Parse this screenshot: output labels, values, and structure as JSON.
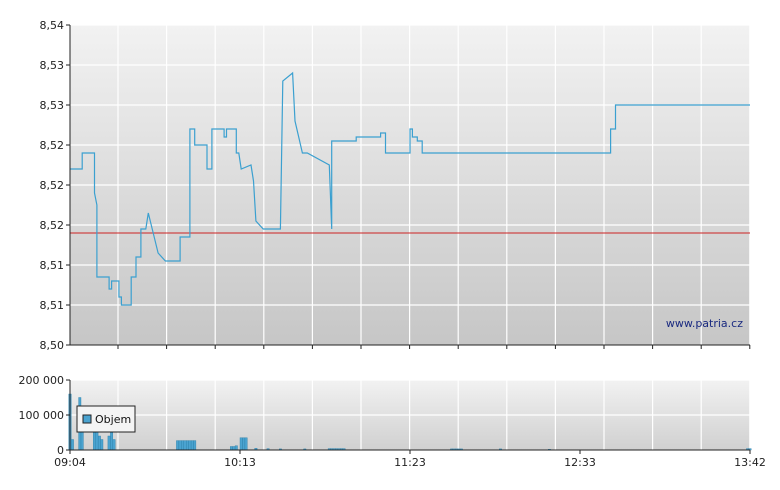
{
  "watermark": "www.patria.cz",
  "colors": {
    "price_line": "#3ba0d0",
    "reference_line": "#cc2222",
    "volume_bar": "#4aa3d0",
    "grid": "#ffffff",
    "plot_top": "#f2f2f2",
    "plot_bottom": "#c6c6c6"
  },
  "chart_data": [
    {
      "type": "line",
      "name": "price",
      "x_axis": {
        "range_minutes": [
          544,
          822
        ],
        "tick_labels": [
          "09:04",
          "10:13",
          "11:23",
          "12:33",
          "13:42"
        ]
      },
      "y_axis": {
        "range": [
          8.5,
          8.54
        ],
        "tick_values": [
          8.5,
          8.505,
          8.51,
          8.515,
          8.52,
          8.525,
          8.53,
          8.535,
          8.54
        ],
        "tick_labels": [
          "8,50",
          "8,51",
          "8,51",
          "8,52",
          "8,52",
          "8,52",
          "8,53",
          "8,53",
          "8,54"
        ]
      },
      "reference_value": 8.514,
      "grid": true,
      "series": [
        {
          "x": [
            544,
            549,
            549,
            554,
            554,
            555,
            555,
            560,
            560,
            561,
            561,
            564,
            564,
            565,
            565,
            569,
            569,
            571,
            571,
            573,
            573,
            575,
            576,
            576,
            580,
            580,
            583,
            583,
            583,
            588,
            589,
            589,
            593,
            593,
            595,
            595,
            600,
            600,
            602,
            602,
            607,
            607,
            608,
            608,
            612,
            612,
            613,
            614,
            614,
            618,
            618,
            619,
            619,
            620,
            620,
            623,
            623,
            630,
            630,
            631,
            631,
            635,
            635,
            636,
            636,
            639,
            639,
            641,
            641,
            650,
            651,
            651,
            661,
            661,
            671,
            671,
            673,
            673,
            683,
            683,
            684,
            684,
            686,
            686,
            688,
            688,
            713,
            713,
            721,
            721,
            765,
            765,
            767,
            767,
            800,
            800,
            822
          ],
          "y": [
            8.522,
            8.522,
            8.524,
            8.524,
            8.519,
            8.5175,
            8.5085,
            8.5085,
            8.507,
            8.507,
            8.508,
            8.508,
            8.506,
            8.506,
            8.505,
            8.505,
            8.5085,
            8.5085,
            8.511,
            8.511,
            8.5145,
            8.5145,
            8.5165,
            8.5165,
            8.5115,
            8.5115,
            8.5105,
            8.5105,
            8.5105,
            8.5105,
            8.5105,
            8.5135,
            8.5135,
            8.527,
            8.527,
            8.525,
            8.525,
            8.522,
            8.522,
            8.527,
            8.527,
            8.526,
            8.526,
            8.527,
            8.527,
            8.524,
            8.524,
            8.522,
            8.522,
            8.5225,
            8.5225,
            8.5205,
            8.5205,
            8.5155,
            8.5155,
            8.5145,
            8.5145,
            8.5145,
            8.5145,
            8.533,
            8.533,
            8.534,
            8.534,
            8.528,
            8.528,
            8.524,
            8.524,
            8.524,
            8.524,
            8.5225,
            8.5145,
            8.5255,
            8.5255,
            8.526,
            8.526,
            8.5265,
            8.5265,
            8.524,
            8.524,
            8.527,
            8.527,
            8.526,
            8.526,
            8.5255,
            8.5255,
            8.524,
            8.524,
            8.524,
            8.524,
            8.524,
            8.524,
            8.527,
            8.527,
            8.53,
            8.53,
            8.53,
            8.53
          ]
        }
      ]
    },
    {
      "type": "bar",
      "name": "volume",
      "y_axis": {
        "range": [
          0,
          200000
        ],
        "tick_values": [
          0,
          100000,
          200000
        ],
        "tick_labels": [
          "0",
          "100 000",
          "200 000"
        ]
      },
      "legend": {
        "label": "Objem",
        "placement": "top-left"
      },
      "grid": true,
      "bars": {
        "x": [
          544,
          545,
          548,
          549,
          554,
          555,
          556,
          557,
          560,
          561,
          562,
          588,
          589,
          590,
          591,
          592,
          593,
          594,
          595,
          610,
          611,
          612,
          614,
          615,
          616,
          620,
          625,
          630,
          640,
          650,
          651,
          652,
          653,
          654,
          655,
          656,
          700,
          701,
          702,
          703,
          704,
          720,
          740,
          821,
          822
        ],
        "values": [
          160000,
          30000,
          150000,
          60000,
          50000,
          60000,
          40000,
          30000,
          40000,
          50000,
          30000,
          27000,
          27000,
          27000,
          27000,
          27000,
          27000,
          27000,
          27000,
          10000,
          10000,
          12000,
          35000,
          35000,
          35000,
          5000,
          4000,
          3000,
          3000,
          4000,
          4000,
          4000,
          4000,
          4000,
          4000,
          4000,
          3000,
          3000,
          3000,
          3000,
          3000,
          3000,
          2000,
          4000,
          4000
        ]
      }
    }
  ]
}
